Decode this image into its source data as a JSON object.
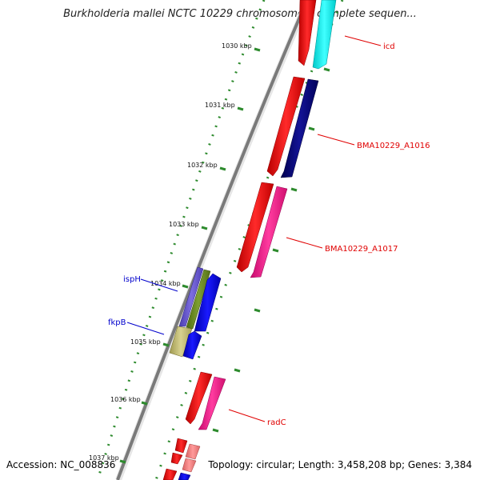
{
  "title": "Burkholderia mallei NCTC 10229 chromosome I, complete sequen...",
  "footer": {
    "accession": "Accession: NC_008836",
    "summary": "Topology: circular; Length: 3,458,208 bp; Genes: 3,384"
  },
  "ticks": [
    {
      "id": "t1030",
      "label": "1030 kbp"
    },
    {
      "id": "t1031",
      "label": "1031 kbp"
    },
    {
      "id": "t1032",
      "label": "1032 kbp"
    },
    {
      "id": "t1033",
      "label": "1033 kbp"
    },
    {
      "id": "t1034",
      "label": "1034 kbp"
    },
    {
      "id": "t1035",
      "label": "1035 kbp"
    },
    {
      "id": "t1036",
      "label": "1036 kbp"
    },
    {
      "id": "t1037",
      "label": "1037 kbp"
    }
  ],
  "gene_labels": [
    {
      "id": "icd",
      "label": "icd",
      "color": "#e00000"
    },
    {
      "id": "a1016",
      "label": "BMA10229_A1016",
      "color": "#e00000"
    },
    {
      "id": "a1017",
      "label": "BMA10229_A1017",
      "color": "#e00000"
    },
    {
      "id": "radC",
      "label": "radC",
      "color": "#e00000"
    },
    {
      "id": "ispH",
      "label": "ispH",
      "color": "#0000cc"
    },
    {
      "id": "fkpB",
      "label": "fkpB",
      "color": "#0000cc"
    }
  ],
  "colors": {
    "backbone": "#808080",
    "tick": "#2e8b2e",
    "red_feature": "#ff0000",
    "blue_feature": "#0000ff",
    "cyan_feature": "#00ffff",
    "navy_feature": "#000080",
    "pink_feature": "#ff1493",
    "olive_feature": "#6b8e23",
    "slate_feature": "#6a5acd",
    "khaki_feature": "#bdb76b",
    "salmon_feature": "#f08080"
  }
}
